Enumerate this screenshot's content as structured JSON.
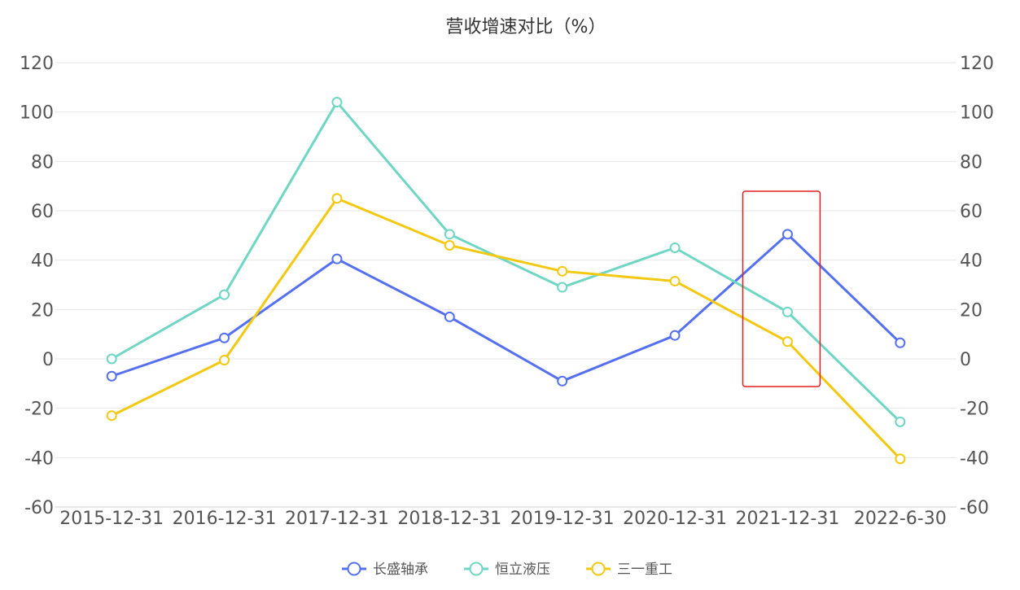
{
  "chart_data": {
    "type": "line",
    "title": "营收增速对比（%）",
    "categories": [
      "2015-12-31",
      "2016-12-31",
      "2017-12-31",
      "2018-12-31",
      "2019-12-31",
      "2020-12-31",
      "2021-12-31",
      "2022-6-30"
    ],
    "ylim": [
      -60,
      120
    ],
    "yticks": [
      -60,
      -40,
      -20,
      0,
      20,
      40,
      60,
      80,
      100,
      120
    ],
    "y_axis_sides": "left-and-right",
    "grid": true,
    "legend": "bottom-center",
    "highlight_category": "2021-12-31",
    "highlight_color": "#e02020",
    "series": [
      {
        "name": "长盛轴承",
        "color": "#5470f0",
        "values": [
          -7,
          8.5,
          40.5,
          17,
          -9,
          9.5,
          50.5,
          6.5
        ]
      },
      {
        "name": "恒立液压",
        "color": "#6fd6c4",
        "values": [
          0,
          26,
          104,
          50.5,
          29,
          45,
          19,
          -25.5
        ]
      },
      {
        "name": "三一重工",
        "color": "#f2c811",
        "values": [
          -23,
          -0.5,
          65,
          46,
          35.5,
          31.5,
          7,
          -40.5
        ]
      }
    ]
  }
}
